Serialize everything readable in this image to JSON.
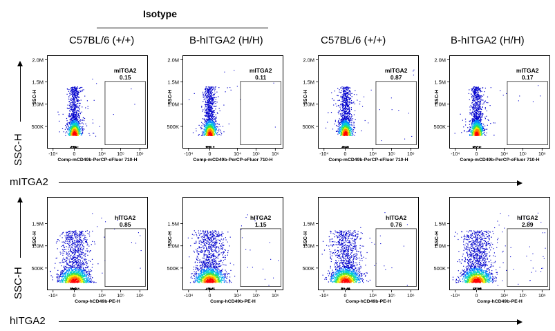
{
  "header": {
    "isotype": "Isotype",
    "col_labels": [
      "C57BL/6 (+/+)",
      "B-hITGA2 (H/H)",
      "C57BL/6 (+/+)",
      "B-hITGA2 (H/H)"
    ]
  },
  "side_labels": {
    "row1_y": "SSC-H",
    "row2_y": "SSC-H",
    "row1_x": "mITGA2",
    "row2_x": "hITGA2"
  },
  "colors": {
    "density": [
      "#0000cc",
      "#0080ff",
      "#00d0d0",
      "#40e040",
      "#f0f000",
      "#ff8000",
      "#ff0000"
    ]
  },
  "chart_data": [
    {
      "type": "scatter",
      "row": 1,
      "col": 1,
      "gate_label": "mITGA2",
      "gate_value": "0.15",
      "xlabel": "Comp-mCD49b-PerCP-eFluor 710-H",
      "ylabel": "SSC-H",
      "x_ticks": [
        "-10⁴",
        "0",
        "10⁴",
        "10⁵",
        "10⁶"
      ],
      "y_ticks": [
        "2.0M",
        "1.5M",
        "1.0M",
        "500K"
      ],
      "ylim": [
        0,
        2100000
      ]
    },
    {
      "type": "scatter",
      "row": 1,
      "col": 2,
      "gate_label": "mITGA2",
      "gate_value": "0.11",
      "xlabel": "Comp-mCD49b-PerCP-eFluor 710-H",
      "ylabel": "SSC-H",
      "x_ticks": [
        "-10⁴",
        "0",
        "10⁴",
        "10⁵",
        "10⁶"
      ],
      "y_ticks": [
        "2.0M",
        "1.5M",
        "1.0M",
        "500K"
      ],
      "ylim": [
        0,
        2100000
      ]
    },
    {
      "type": "scatter",
      "row": 1,
      "col": 3,
      "gate_label": "mITGA2",
      "gate_value": "0.87",
      "xlabel": "Comp-mCD49b-PerCP-eFluor 710-H",
      "ylabel": "SSC-H",
      "x_ticks": [
        "-10⁴",
        "0",
        "10⁴",
        "10⁵",
        "10⁶"
      ],
      "y_ticks": [
        "2.0M",
        "1.5M",
        "1.0M",
        "500K"
      ],
      "ylim": [
        0,
        2100000
      ]
    },
    {
      "type": "scatter",
      "row": 1,
      "col": 4,
      "gate_label": "mITGA2",
      "gate_value": "0.17",
      "xlabel": "Comp-mCD49b-PerCP-eFluor 710-H",
      "ylabel": "SSC-H",
      "x_ticks": [
        "-10⁴",
        "0",
        "10⁴",
        "10⁵",
        "10⁶"
      ],
      "y_ticks": [
        "2.0M",
        "1.5M",
        "1.0M",
        "500K"
      ],
      "ylim": [
        0,
        2100000
      ]
    },
    {
      "type": "scatter",
      "row": 2,
      "col": 1,
      "gate_label": "hITGA2",
      "gate_value": "0.85",
      "xlabel": "Comp-hCD49b-PE-H",
      "ylabel": "SSC-H",
      "x_ticks": [
        "-10⁴",
        "0",
        "10⁴",
        "10⁵",
        "10⁶"
      ],
      "y_ticks": [
        "1.5M",
        "1.0M",
        "500K"
      ],
      "ylim": [
        0,
        2100000
      ]
    },
    {
      "type": "scatter",
      "row": 2,
      "col": 2,
      "gate_label": "hITGA2",
      "gate_value": "1.15",
      "xlabel": "Comp-hCD49b-PE-H",
      "ylabel": "SSC-H",
      "x_ticks": [
        "-10⁴",
        "0",
        "10⁴",
        "10⁵",
        "10⁶"
      ],
      "y_ticks": [
        "1.5M",
        "1.0M",
        "500K"
      ],
      "ylim": [
        0,
        2100000
      ]
    },
    {
      "type": "scatter",
      "row": 2,
      "col": 3,
      "gate_label": "hITGA2",
      "gate_value": "0.76",
      "xlabel": "Comp-hCD49b-PE-H",
      "ylabel": "SSC-H",
      "x_ticks": [
        "-10⁴",
        "0",
        "10⁴",
        "10⁵",
        "10⁶"
      ],
      "y_ticks": [
        "1.5M",
        "1.0M",
        "500K"
      ],
      "ylim": [
        0,
        2100000
      ]
    },
    {
      "type": "scatter",
      "row": 2,
      "col": 4,
      "gate_label": "hITGA2",
      "gate_value": "2.89",
      "xlabel": "Comp-hCD49b-PE-H",
      "ylabel": "SSC-H",
      "x_ticks": [
        "-10⁴",
        "0",
        "10⁴",
        "10⁵",
        "10⁶"
      ],
      "y_ticks": [
        "1.5M",
        "1.0M",
        "500K"
      ],
      "ylim": [
        0,
        2100000
      ]
    }
  ]
}
